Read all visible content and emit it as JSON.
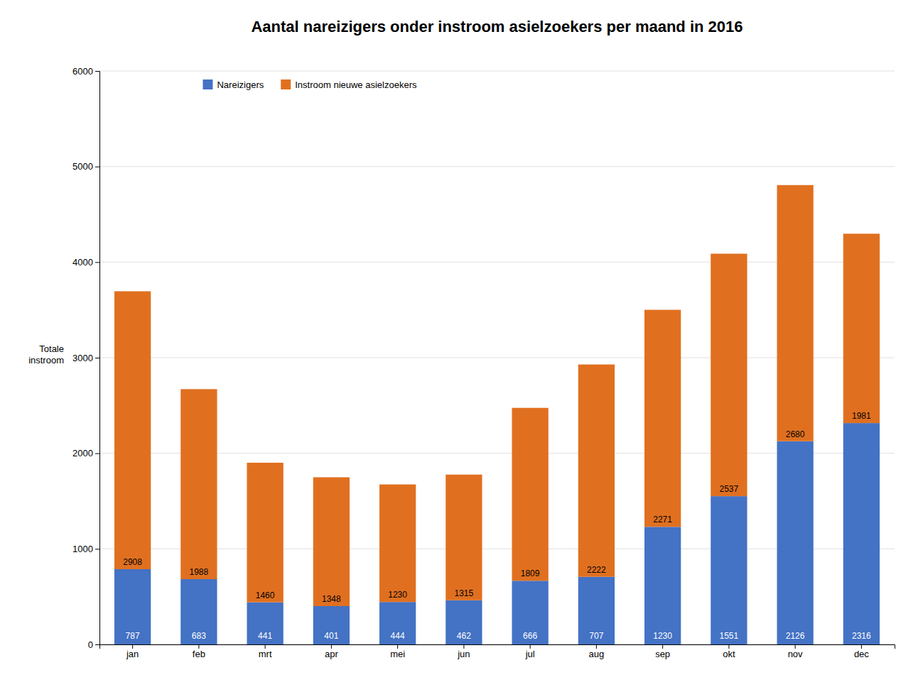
{
  "chart_data": {
    "type": "bar",
    "stacked": true,
    "title": "Aantal nareizigers onder instroom asielzoekers per maand in 2016",
    "ylabel": "Totale\ninstroom",
    "categories": [
      "jan",
      "feb",
      "mrt",
      "apr",
      "mei",
      "jun",
      "jul",
      "aug",
      "sep",
      "okt",
      "nov",
      "dec"
    ],
    "series": [
      {
        "name": "Nareizigers",
        "color": "#4472C4",
        "values": [
          787,
          683,
          441,
          401,
          444,
          462,
          666,
          707,
          1230,
          1551,
          2126,
          2316
        ]
      },
      {
        "name": "Instroom nieuwe asielzoekers",
        "color": "#E07020",
        "values": [
          2908,
          1988,
          1460,
          1348,
          1230,
          1315,
          1809,
          2222,
          2271,
          2537,
          2680,
          1981
        ]
      }
    ],
    "ylim": [
      0,
      6000
    ],
    "yticks": [
      0,
      1000,
      2000,
      3000,
      4000,
      5000,
      6000
    ],
    "grid": true,
    "legend": "upper left",
    "data_labels": true
  }
}
